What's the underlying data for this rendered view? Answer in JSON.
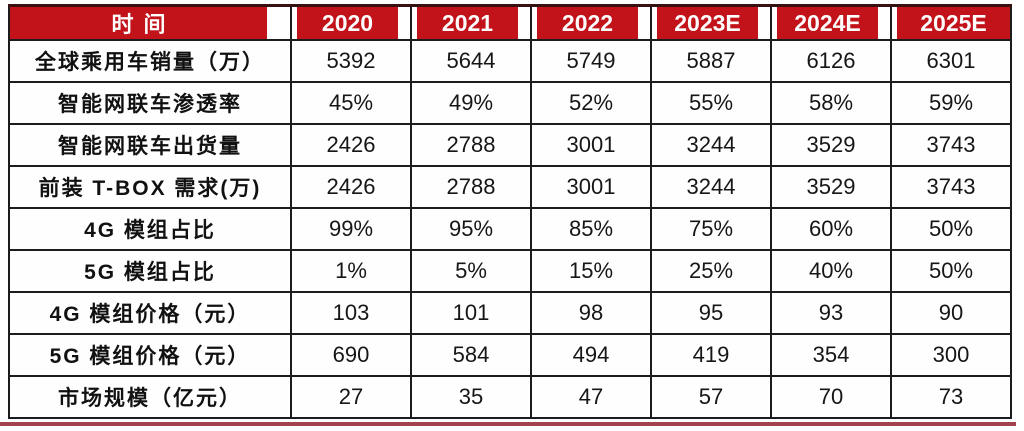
{
  "chart_data": {
    "type": "table",
    "header": {
      "label": "时间",
      "years": [
        "2020",
        "2021",
        "2022",
        "2023E",
        "2024E",
        "2025E"
      ]
    },
    "rows": [
      {
        "label": "全球乘用车销量（万）",
        "values": [
          "5392",
          "5644",
          "5749",
          "5887",
          "6126",
          "6301"
        ]
      },
      {
        "label": "智能网联车渗透率",
        "values": [
          "45%",
          "49%",
          "52%",
          "55%",
          "58%",
          "59%"
        ]
      },
      {
        "label": "智能网联车出货量",
        "values": [
          "2426",
          "2788",
          "3001",
          "3244",
          "3529",
          "3743"
        ]
      },
      {
        "label": "前装 T-BOX 需求(万)",
        "values": [
          "2426",
          "2788",
          "3001",
          "3244",
          "3529",
          "3743"
        ]
      },
      {
        "label": "4G 模组占比",
        "values": [
          "99%",
          "95%",
          "85%",
          "75%",
          "60%",
          "50%"
        ]
      },
      {
        "label": "5G 模组占比",
        "values": [
          "1%",
          "5%",
          "15%",
          "25%",
          "40%",
          "50%"
        ]
      },
      {
        "label": "4G 模组价格（元）",
        "values": [
          "103",
          "101",
          "98",
          "95",
          "93",
          "90"
        ]
      },
      {
        "label": "5G 模组价格（元）",
        "values": [
          "690",
          "584",
          "494",
          "419",
          "354",
          "300"
        ]
      },
      {
        "label": "市场规模（亿元）",
        "values": [
          "27",
          "35",
          "47",
          "57",
          "70",
          "73"
        ]
      }
    ],
    "layout_hints": {
      "grid": "on",
      "header_position": "top"
    }
  },
  "colors": {
    "header_bg": "#c2121a",
    "header_text": "#fdfdfd",
    "border": "#1c1c1c",
    "bottom_rule": "#a2424e",
    "cell_bg": "#fefefe",
    "cell_text": "#161616"
  }
}
